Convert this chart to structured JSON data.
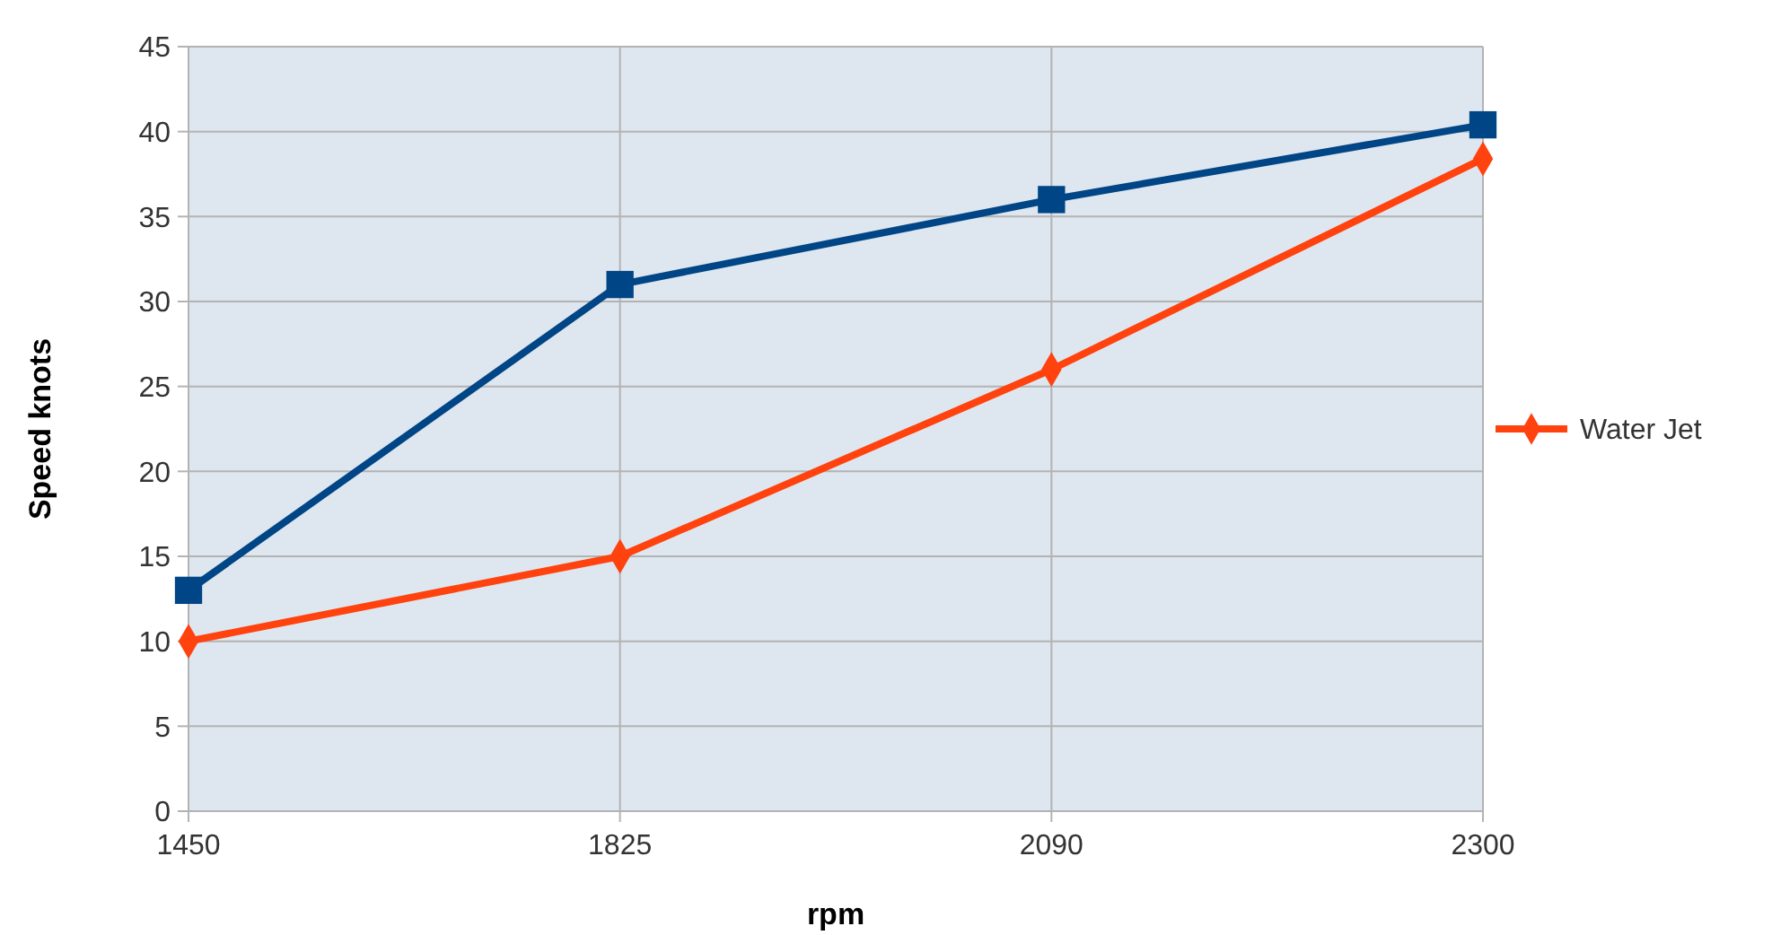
{
  "chart_data": {
    "type": "line",
    "xlabel": "rpm",
    "ylabel": "Speed knots",
    "categories": [
      "1450",
      "1825",
      "2090",
      "2300"
    ],
    "series": [
      {
        "color": "#004586",
        "marker": "square",
        "values": [
          13,
          31,
          36,
          40.4
        ]
      },
      {
        "name": "Water Jet",
        "color": "#ff420e",
        "marker": "diamond",
        "values": [
          10,
          15,
          26,
          38.4
        ]
      }
    ],
    "ylim": [
      0,
      45
    ],
    "yticks": [
      0,
      5,
      10,
      15,
      20,
      25,
      30,
      35,
      40,
      45
    ],
    "grid": true,
    "legend": "right",
    "line_style": "solid"
  }
}
